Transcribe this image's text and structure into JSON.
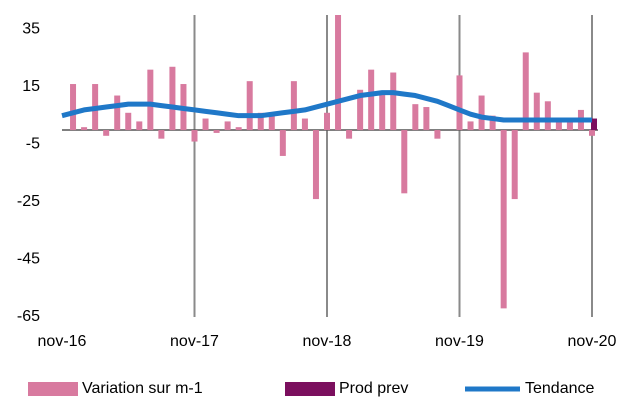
{
  "chart_data": {
    "type": "bar",
    "categories": [
      "nov-16",
      null,
      null,
      null,
      null,
      null,
      null,
      null,
      null,
      null,
      null,
      null,
      "nov-17",
      null,
      null,
      null,
      null,
      null,
      null,
      null,
      null,
      null,
      null,
      null,
      "nov-18",
      null,
      null,
      null,
      null,
      null,
      null,
      null,
      null,
      null,
      null,
      null,
      "nov-19",
      null,
      null,
      null,
      null,
      null,
      null,
      null,
      null,
      null,
      null,
      null,
      "nov-20"
    ],
    "series": [
      {
        "name": "Variation sur m-1",
        "type": "bar",
        "color": "#d87a9f",
        "values": [
          null,
          16,
          1,
          16,
          -2,
          12,
          6,
          3,
          21,
          -3,
          22,
          16,
          -4,
          4,
          -1,
          3,
          1,
          17,
          6,
          6,
          -9,
          17,
          4,
          -24,
          6,
          40,
          -3,
          14,
          21,
          13,
          20,
          -22,
          9,
          8,
          -3,
          0,
          19,
          3,
          12,
          5,
          -62,
          -24,
          27,
          13,
          10,
          4,
          3,
          7,
          -2
        ]
      },
      {
        "name": "Prod prev",
        "type": "bar",
        "color": "#7b0f5e",
        "values": [
          null,
          null,
          null,
          null,
          null,
          null,
          null,
          null,
          null,
          null,
          null,
          null,
          null,
          null,
          null,
          null,
          null,
          null,
          null,
          null,
          null,
          null,
          null,
          null,
          null,
          null,
          null,
          null,
          null,
          null,
          null,
          null,
          null,
          null,
          null,
          null,
          null,
          null,
          null,
          null,
          null,
          null,
          null,
          null,
          null,
          null,
          null,
          null,
          4
        ]
      },
      {
        "name": "Tendance",
        "type": "line",
        "color": "#1f78c8",
        "values": [
          5,
          6,
          7,
          7.5,
          8,
          8.5,
          9,
          9,
          9,
          8.5,
          8,
          7.5,
          7,
          6.5,
          6,
          5.5,
          5,
          5,
          5,
          5.5,
          6,
          6.5,
          7,
          8,
          9,
          10,
          11,
          12,
          12.5,
          13,
          13,
          12.5,
          12,
          11,
          10,
          8.5,
          7,
          5.5,
          4.5,
          4,
          3.5,
          3.5,
          3.5,
          3.5,
          3.5,
          3.5,
          3.5,
          3.5,
          3.5
        ]
      }
    ],
    "ylim": [
      -65,
      40
    ],
    "yticks": [
      35,
      15,
      -5,
      -25,
      -45,
      -65
    ],
    "grid": "vertical",
    "legend": "bottom"
  }
}
